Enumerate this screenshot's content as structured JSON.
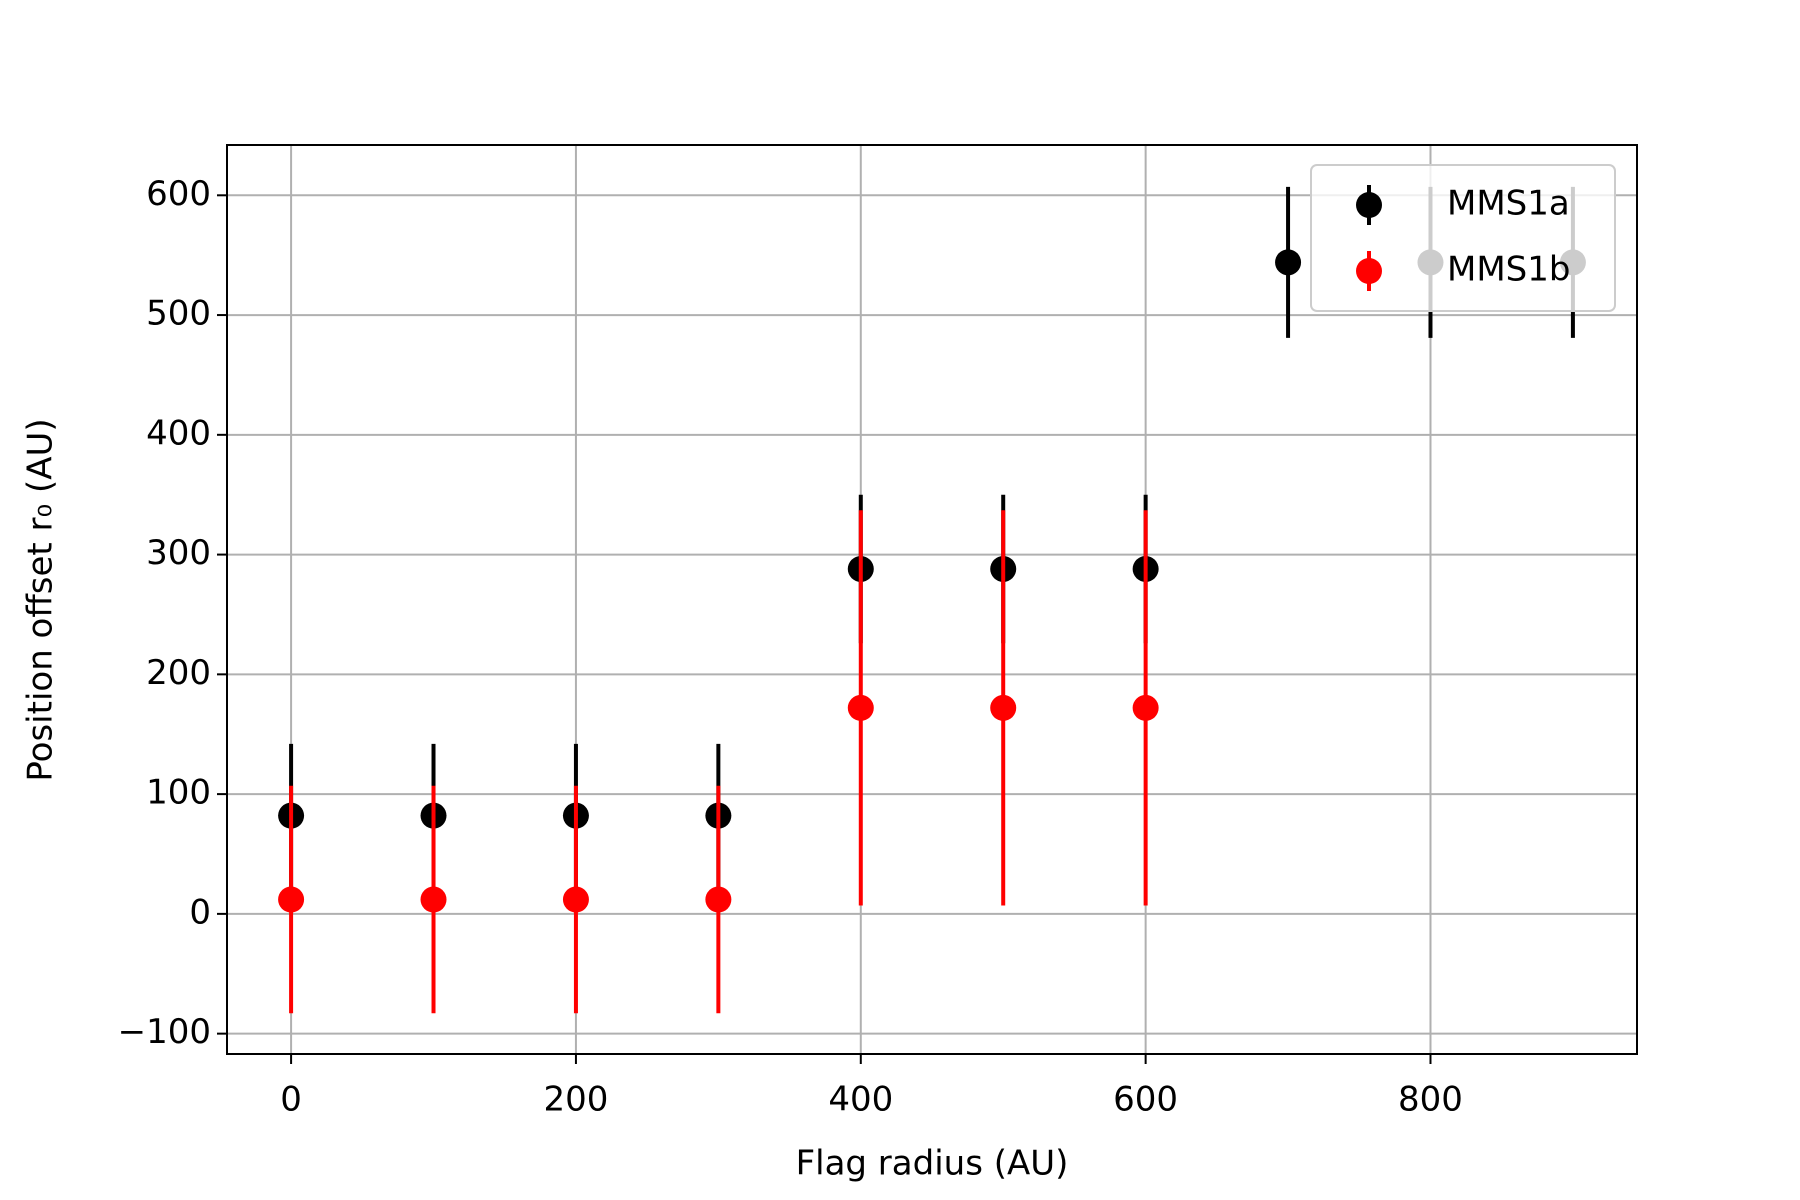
{
  "chart_data": {
    "type": "errorbar",
    "xlabel": "Flag radius (AU)",
    "ylabel": "Position offset r₀ (AU)",
    "xlim": [
      -45,
      945
    ],
    "ylim": [
      -117,
      642
    ],
    "xticks": [
      0,
      200,
      400,
      600,
      800
    ],
    "yticks": [
      {
        "value": -100,
        "label": "−100"
      },
      0,
      100,
      200,
      300,
      400,
      500,
      600
    ],
    "grid": true,
    "legend": "upper right",
    "series": [
      {
        "name": "MMS1a",
        "color": "#000000",
        "x": [
          0,
          100,
          200,
          300,
          400,
          500,
          600,
          700,
          800,
          900
        ],
        "values": [
          82,
          82,
          82,
          82,
          288,
          288,
          288,
          544,
          544,
          544
        ],
        "errors": [
          60,
          60,
          60,
          60,
          62,
          62,
          62,
          63,
          63,
          63
        ]
      },
      {
        "name": "MMS1b",
        "color": "#ff0000",
        "x": [
          0,
          100,
          200,
          300,
          400,
          500,
          600
        ],
        "values": [
          12,
          12,
          12,
          12,
          172,
          172,
          172
        ],
        "errors": [
          95,
          95,
          95,
          95,
          165,
          165,
          165
        ]
      }
    ]
  }
}
